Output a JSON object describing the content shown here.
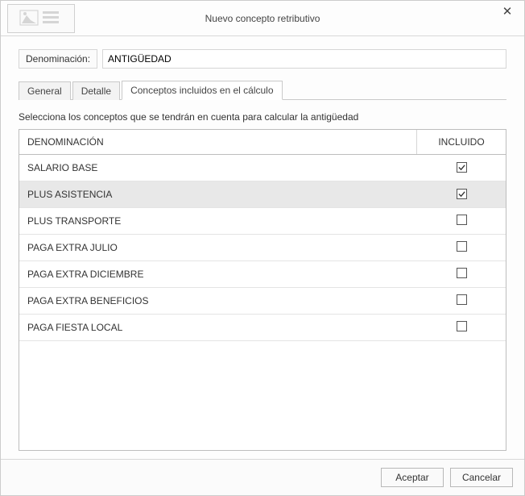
{
  "dialog": {
    "title": "Nuevo concepto retributivo",
    "close_symbol": "✕"
  },
  "form": {
    "denomination_label": "Denominación:",
    "denomination_value": "ANTIGÜEDAD"
  },
  "tabs": {
    "general": "General",
    "detalle": "Detalle",
    "conceptos": "Conceptos incluidos en el cálculo",
    "active_index": 2
  },
  "instruction": "Selecciona los conceptos que se tendrán en cuenta para calcular la antigüedad",
  "table": {
    "headers": {
      "name": "DENOMINACIÓN",
      "included": "INCLUIDO"
    },
    "selected_row_index": 1,
    "rows": [
      {
        "name": "SALARIO BASE",
        "included": true
      },
      {
        "name": "PLUS ASISTENCIA",
        "included": true
      },
      {
        "name": "PLUS TRANSPORTE",
        "included": false
      },
      {
        "name": "PAGA EXTRA JULIO",
        "included": false
      },
      {
        "name": "PAGA EXTRA DICIEMBRE",
        "included": false
      },
      {
        "name": "PAGA EXTRA BENEFICIOS",
        "included": false
      },
      {
        "name": "PAGA FIESTA LOCAL",
        "included": false
      }
    ]
  },
  "footer": {
    "accept": "Aceptar",
    "cancel": "Cancelar"
  },
  "colors": {
    "selected_row_bg": "#e8e8e8",
    "border": "#bdbdbd",
    "header_border": "#d6d6d6"
  }
}
